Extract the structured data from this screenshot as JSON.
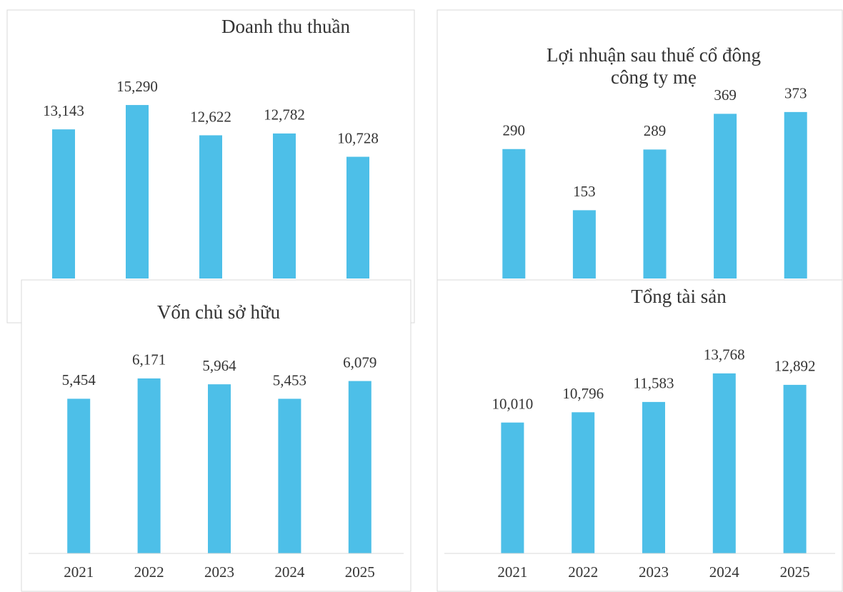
{
  "chart_data": [
    {
      "type": "bar",
      "title": [
        "Doanh thu thuần"
      ],
      "values": [
        13143,
        15290,
        12622,
        12782,
        10728
      ],
      "value_labels": [
        "13,143",
        "15,290",
        "12,622",
        "12,782",
        "10,728"
      ],
      "color": "#4dbfe8",
      "ylim": [
        0,
        18000
      ]
    },
    {
      "type": "bar",
      "title": [
        "Lợi nhuận sau thuế cổ đông",
        "công ty mẹ"
      ],
      "values": [
        290,
        153,
        289,
        369,
        373
      ],
      "color": "#4dbfe8",
      "ylim": [
        0,
        400
      ]
    },
    {
      "type": "bar",
      "title": [
        "Vốn chủ sở hữu"
      ],
      "categories": [
        "2021",
        "2022",
        "2023",
        "2024",
        "2025"
      ],
      "values": [
        5454,
        6171,
        5964,
        5453,
        6079
      ],
      "value_labels": [
        "5,454",
        "6,171",
        "5,964",
        "5,453",
        "6,079"
      ],
      "color": "#4dbfe8",
      "ylim": [
        0,
        7000
      ]
    },
    {
      "type": "bar",
      "title": [
        "Tổng tài sản"
      ],
      "categories": [
        "2021",
        "2022",
        "2023",
        "2024",
        "2025"
      ],
      "values": [
        10010,
        10796,
        11583,
        13768,
        12892
      ],
      "value_labels": [
        "10,010",
        "10,796",
        "11,583",
        "13,768",
        "12,892"
      ],
      "color": "#4dbfe8",
      "ylim": [
        0,
        16000
      ]
    }
  ]
}
